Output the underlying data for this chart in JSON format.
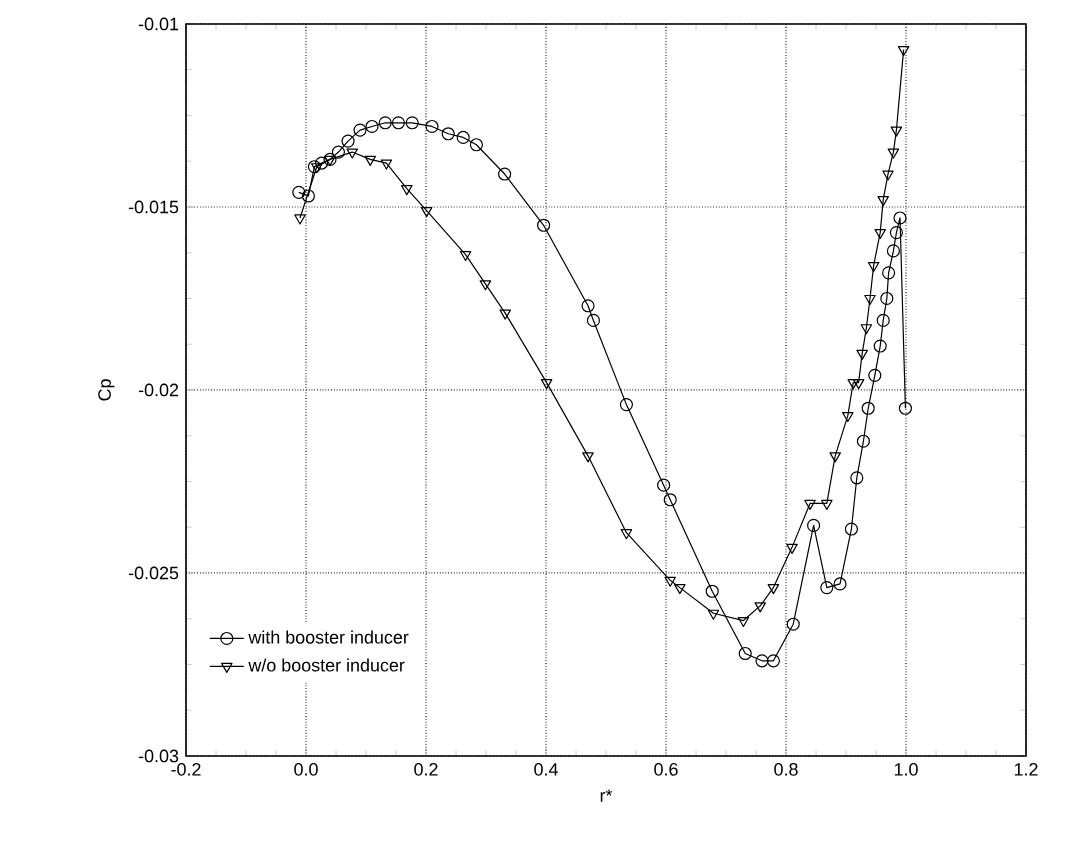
{
  "chart_data": {
    "type": "line",
    "xlabel": "r*",
    "ylabel": "Cp",
    "xlim": [
      -0.2,
      1.2
    ],
    "ylim": [
      -0.03,
      -0.01
    ],
    "xticks": [
      -0.2,
      {
        "value": 0,
        "label": "0.0"
      },
      0.2,
      0.4,
      0.6,
      0.8,
      {
        "value": 1,
        "label": "1.0"
      },
      1.2
    ],
    "yticks": [
      -0.03,
      -0.025,
      -0.02,
      -0.015,
      -0.01
    ],
    "grid": true,
    "legend": "bottom left",
    "series": [
      {
        "name": "with booster inducer",
        "color": "#000000",
        "marker": "circle",
        "x": [
          -0.012,
          0.004,
          0.014,
          0.026,
          0.04,
          0.054,
          0.07,
          0.09,
          0.11,
          0.132,
          0.154,
          0.177,
          0.21,
          0.237,
          0.262,
          0.284,
          0.331,
          0.396,
          0.47,
          0.479,
          0.534,
          0.596,
          0.607,
          0.677,
          0.732,
          0.76,
          0.779,
          0.812,
          0.846,
          0.868,
          0.89,
          0.909,
          0.918,
          0.929,
          0.937,
          0.948,
          0.957,
          0.962,
          0.968,
          0.971,
          0.979,
          0.984,
          0.99,
          0.999
        ],
        "values": [
          -0.0146,
          -0.0147,
          -0.0139,
          -0.0138,
          -0.0137,
          -0.0135,
          -0.0132,
          -0.0129,
          -0.0128,
          -0.0127,
          -0.0127,
          -0.0127,
          -0.0128,
          -0.013,
          -0.0131,
          -0.0133,
          -0.0141,
          -0.0155,
          -0.0177,
          -0.0181,
          -0.0204,
          -0.0226,
          -0.023,
          -0.0255,
          -0.0272,
          -0.0274,
          -0.0274,
          -0.0264,
          -0.0237,
          -0.0254,
          -0.0253,
          -0.0238,
          -0.0224,
          -0.0214,
          -0.0205,
          -0.0196,
          -0.0188,
          -0.0181,
          -0.0175,
          -0.0168,
          -0.0162,
          -0.0157,
          -0.0153,
          -0.0205
        ]
      },
      {
        "name": "w/o booster inducer",
        "color": "#000000",
        "marker": "triangle",
        "x": [
          -0.01,
          0.018,
          0.04,
          0.077,
          0.107,
          0.134,
          0.168,
          0.201,
          0.266,
          0.299,
          0.332,
          0.401,
          0.47,
          0.534,
          0.607,
          0.623,
          0.679,
          0.729,
          0.757,
          0.779,
          0.81,
          0.84,
          0.868,
          0.882,
          0.903,
          0.912,
          0.921,
          0.927,
          0.934,
          0.94,
          0.946,
          0.957,
          0.962,
          0.97,
          0.979,
          0.984,
          0.996
        ],
        "values": [
          -0.0153,
          -0.0139,
          -0.0137,
          -0.0135,
          -0.0137,
          -0.0138,
          -0.0145,
          -0.0151,
          -0.0163,
          -0.0171,
          -0.0179,
          -0.0198,
          -0.0218,
          -0.0239,
          -0.0252,
          -0.0254,
          -0.0261,
          -0.0263,
          -0.0259,
          -0.0254,
          -0.0243,
          -0.0231,
          -0.0231,
          -0.0218,
          -0.0207,
          -0.0198,
          -0.0198,
          -0.019,
          -0.0183,
          -0.0175,
          -0.0166,
          -0.0157,
          -0.0148,
          -0.0141,
          -0.0135,
          -0.0129,
          -0.0107
        ]
      }
    ]
  }
}
